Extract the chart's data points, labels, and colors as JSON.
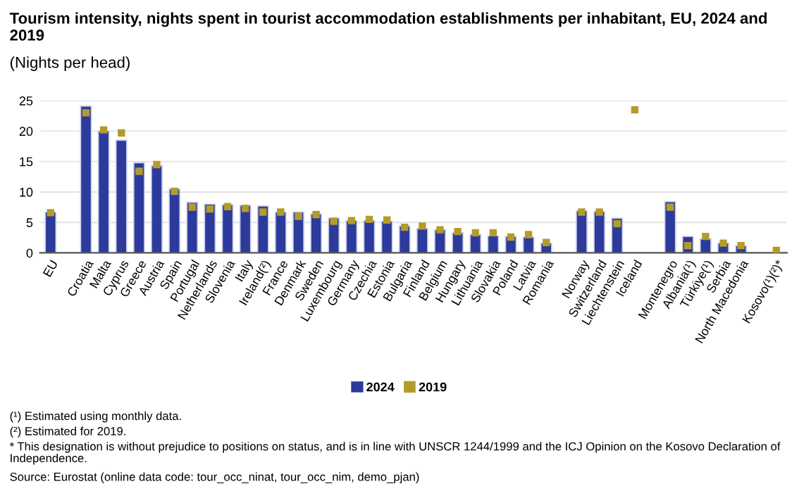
{
  "chart_data": {
    "type": "bar",
    "title": "Tourism intensity, nights spent in tourist accommodation establishments per inhabitant, EU, 2024 and 2019",
    "subtitle": "(Nights per head)",
    "categories": [
      "EU",
      null,
      "Croatia",
      "Malta",
      "Cyprus",
      "Greece",
      "Austria",
      "Spain",
      "Portugal",
      "Netherlands",
      "Slovenia",
      "Italy",
      "Ireland(²)",
      "France",
      "Denmark",
      "Sweden",
      "Luxembourg",
      "Germany",
      "Czechia",
      "Estonia",
      "Bulgaria",
      "Finland",
      "Belgium",
      "Hungary",
      "Lithuania",
      "Slovakia",
      "Poland",
      "Latvia",
      "Romania",
      null,
      "Norway",
      "Switzerland",
      "Liechtenstein",
      "Iceland",
      null,
      "Montenegro",
      "Albania(¹)",
      "Türkiye(¹)",
      "Serbia",
      "North Macedonia",
      null,
      "Kosovo(¹)(²)*"
    ],
    "series": [
      {
        "name": "2024",
        "color": "#2b3a9b",
        "values": [
          6.7,
          null,
          24.1,
          20.0,
          18.5,
          14.8,
          14.3,
          10.5,
          8.3,
          8.0,
          7.9,
          7.8,
          7.7,
          6.7,
          6.7,
          6.4,
          5.7,
          5.3,
          5.3,
          5.2,
          4.4,
          4.0,
          3.8,
          3.3,
          3.0,
          2.8,
          2.7,
          2.6,
          1.6,
          null,
          6.9,
          6.8,
          5.7,
          null,
          null,
          8.4,
          2.7,
          2.3,
          1.6,
          1.2,
          null,
          null
        ]
      },
      {
        "name": "2019",
        "type": "scatter",
        "color": "#b39b2c",
        "values": [
          6.6,
          null,
          23.0,
          20.2,
          19.7,
          13.4,
          14.5,
          10.1,
          7.5,
          7.2,
          7.6,
          7.3,
          6.7,
          6.7,
          6.0,
          6.3,
          5.2,
          5.3,
          5.5,
          5.4,
          4.2,
          4.4,
          3.8,
          3.5,
          3.3,
          3.3,
          2.6,
          3.0,
          1.7,
          null,
          6.7,
          6.7,
          4.8,
          23.5,
          null,
          7.5,
          1.2,
          2.7,
          1.6,
          1.2,
          null,
          0.4
        ]
      }
    ],
    "ylim": [
      0,
      25
    ],
    "yticks": [
      0,
      5,
      10,
      15,
      20,
      25
    ],
    "grid": "y",
    "legend": "bottom",
    "marker": "square",
    "annotations": [
      "(¹) Estimated using monthly data.",
      "(²) Estimated for 2019.",
      "* This designation is without prejudice to positions on status, and is in line with UNSCR 1244/1999 and the ICJ Opinion on the Kosovo Declaration of Independence.",
      "Source: Eurostat (online data code: tour_occ_ninat, tour_occ_nim, demo_pjan)"
    ]
  }
}
